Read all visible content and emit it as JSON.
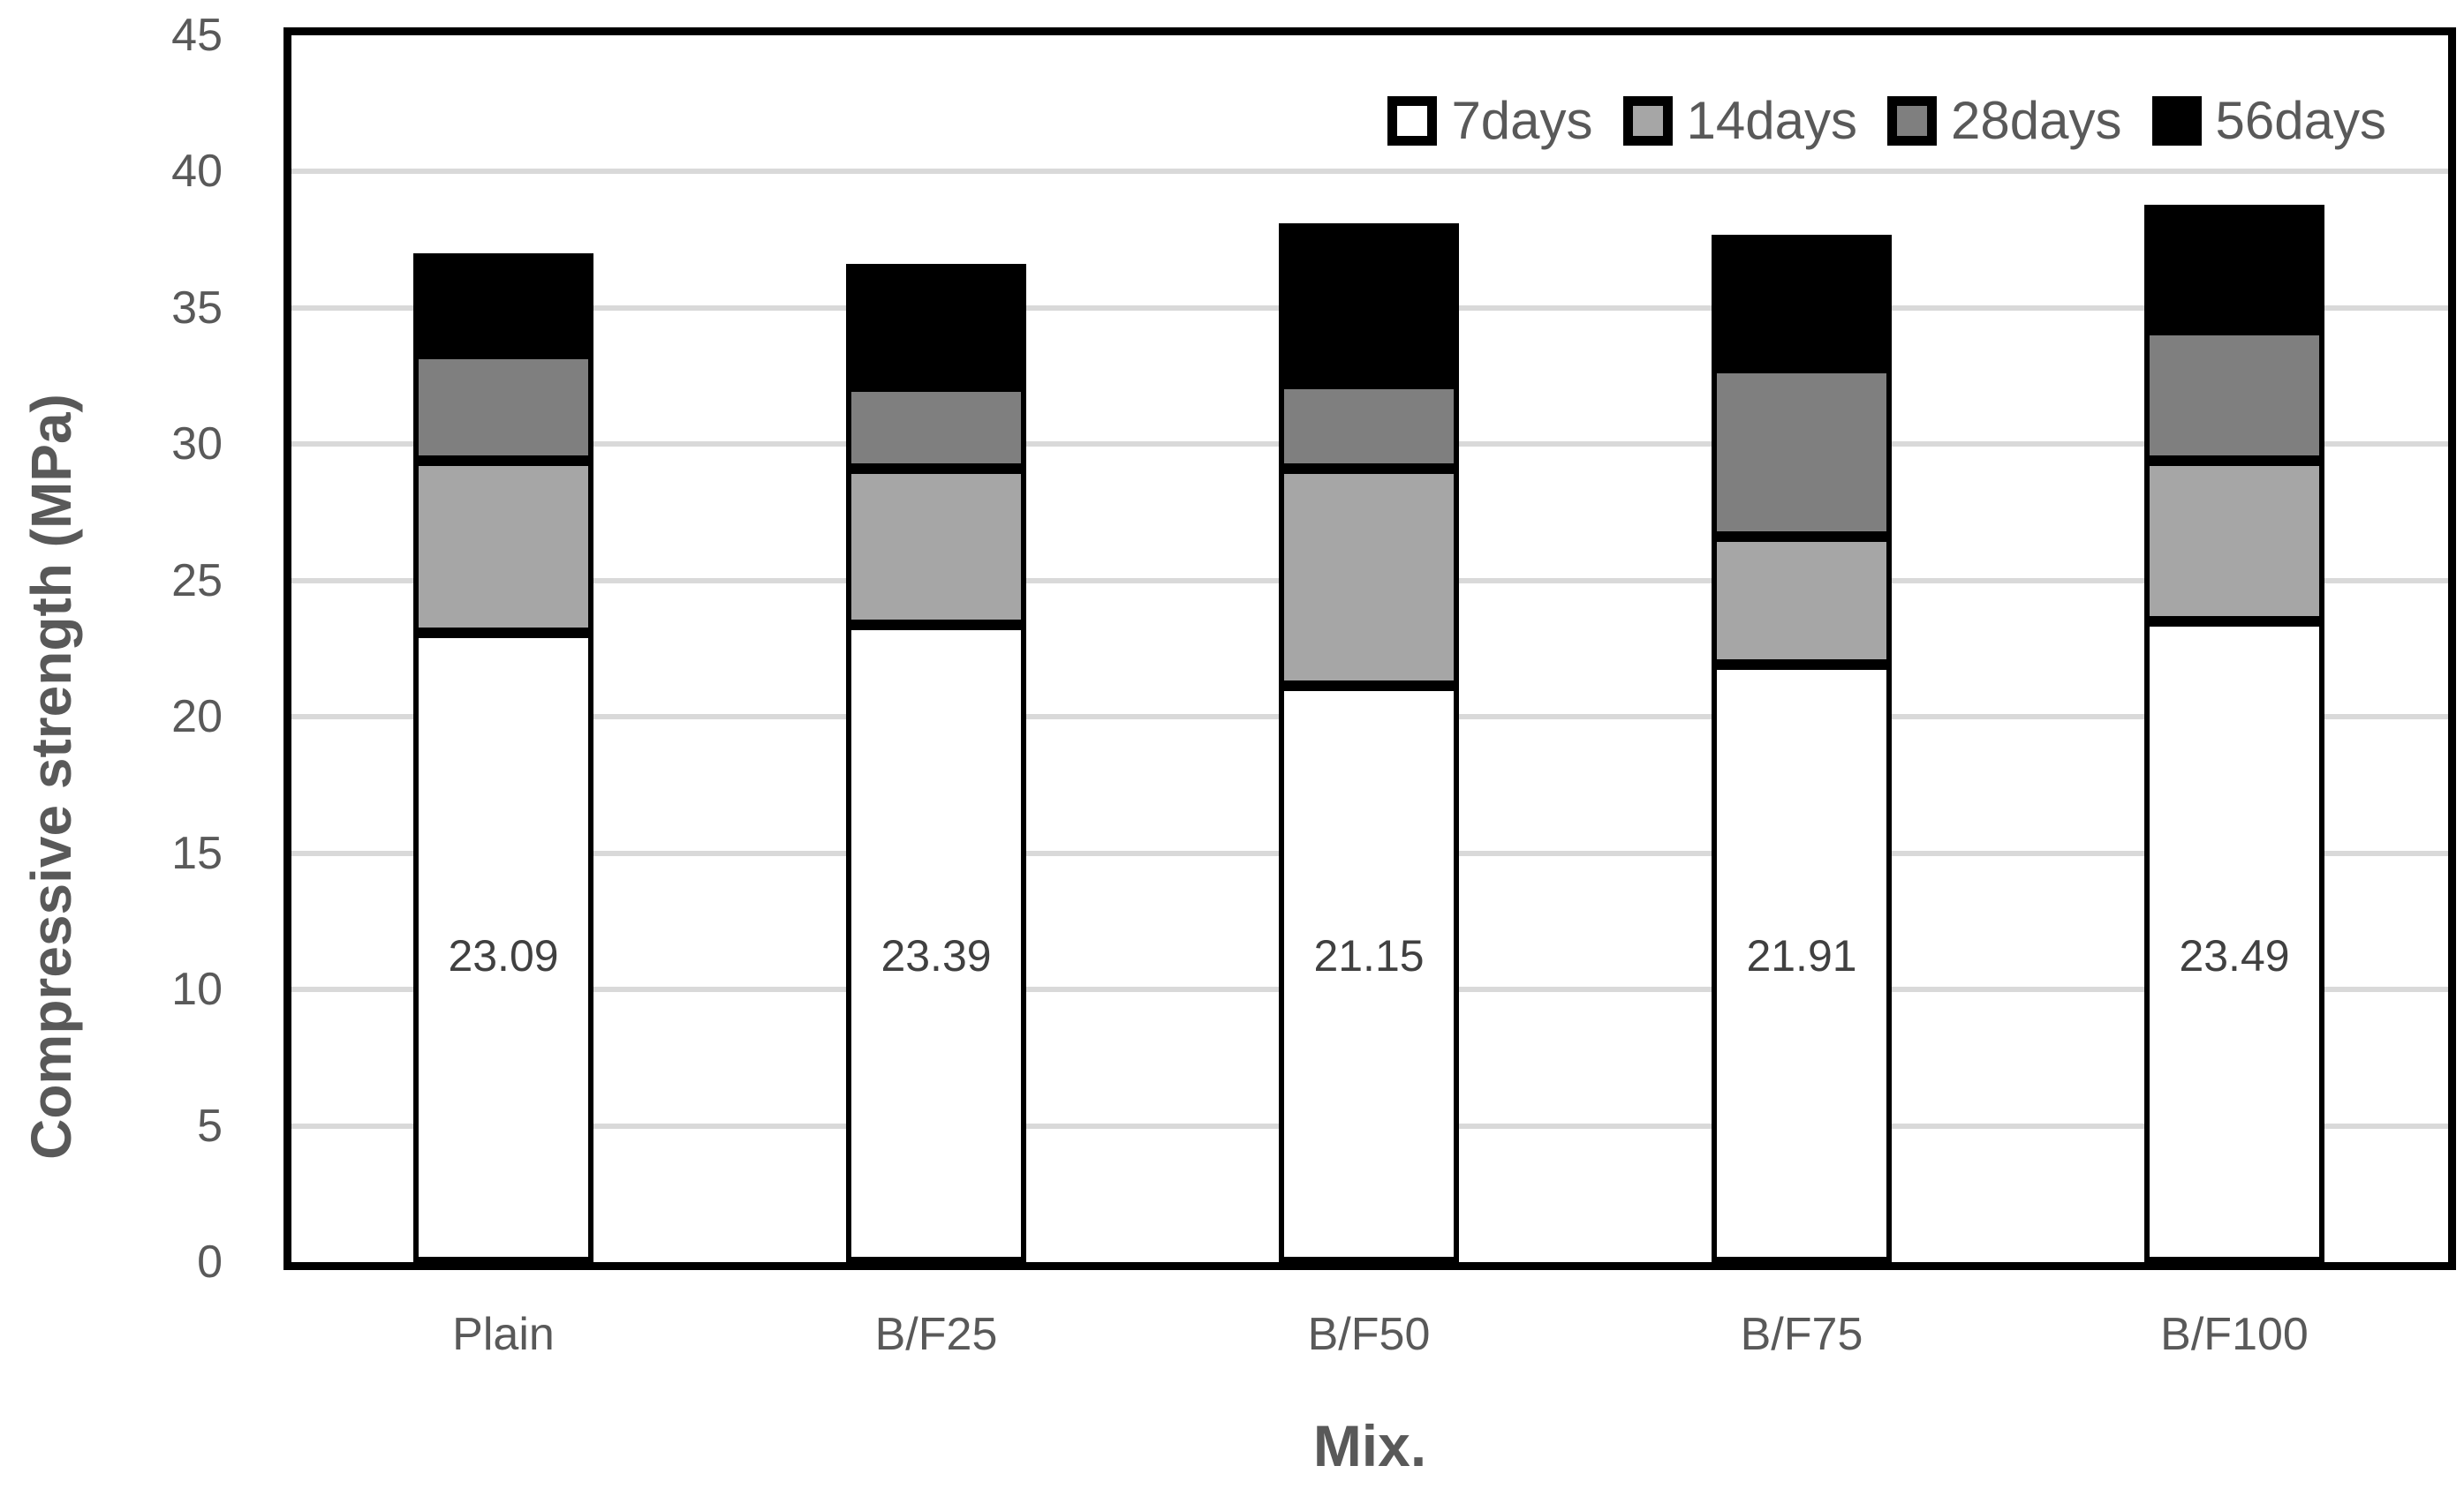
{
  "chart_data": {
    "type": "bar",
    "subtype": "stacked",
    "title": "",
    "xlabel": "Mix.",
    "ylabel": "Compressive strength (MPa)",
    "ylim": [
      0,
      45
    ],
    "yticks": [
      0,
      5,
      10,
      15,
      20,
      25,
      30,
      35,
      40,
      45
    ],
    "grid": true,
    "legend_position": "top-right",
    "categories": [
      "Plain",
      "B/F25",
      "B/F50",
      "B/F75",
      "B/F100"
    ],
    "series": [
      {
        "name": "7days",
        "fill": "#ffffff",
        "cumulative_top": [
          23.09,
          23.39,
          21.15,
          21.91,
          23.49
        ]
      },
      {
        "name": "14days",
        "fill": "#a6a6a6",
        "cumulative_top": [
          29.4,
          29.1,
          29.1,
          26.6,
          29.4
        ]
      },
      {
        "name": "28days",
        "fill": "#7f7f7f",
        "cumulative_top": [
          33.3,
          32.1,
          32.2,
          32.8,
          34.2
        ]
      },
      {
        "name": "56days",
        "fill": "#000000",
        "cumulative_top": [
          37.0,
          36.6,
          38.1,
          37.7,
          38.8
        ]
      }
    ],
    "data_labels": {
      "series": "7days",
      "values": [
        "23.09",
        "23.39",
        "21.15",
        "21.91",
        "23.49"
      ]
    }
  },
  "colors": {
    "gridline": "#d9d9d9",
    "axis_frame": "#000000",
    "tick_text": "#595959",
    "data_label_text": "#404040"
  }
}
